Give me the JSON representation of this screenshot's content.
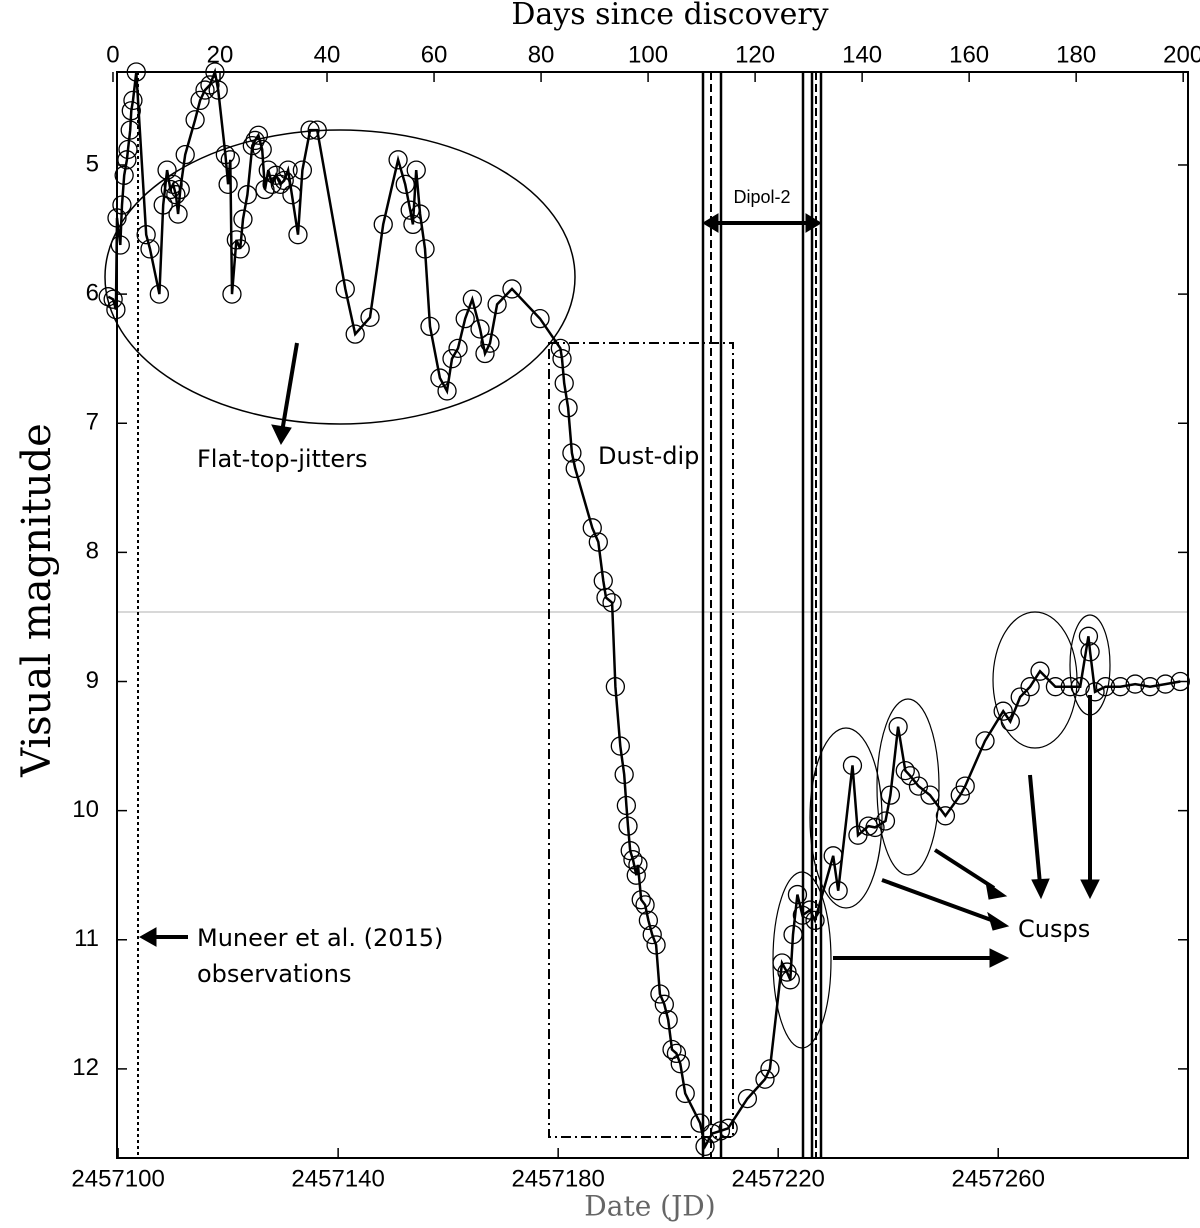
{
  "chart_data": {
    "type": "line",
    "y_label": "Visual magnitude",
    "x_label": "Date (JD)",
    "x2_label": "Days since discovery",
    "inverted_y": true,
    "xlim": [
      2457099.8,
      2457294.5
    ],
    "xticks": [
      2457100,
      2457140,
      2457180,
      2457220,
      2457260
    ],
    "x2lim": [
      0.75,
      200.9
    ],
    "x2ticks": [
      0,
      20,
      40,
      60,
      80,
      100,
      120,
      140,
      160,
      180,
      200
    ],
    "ylim": [
      4.28,
      12.69
    ],
    "yticks": [
      5,
      6,
      7,
      8,
      9,
      10,
      11,
      12
    ],
    "annotations": [
      "Flat-top-jitters",
      "Dust-dip",
      "Dipol-2",
      "Cusps",
      "Muneer et al. (2015)",
      "observations"
    ],
    "x": [
      2457098.2,
      2457099.1,
      2457099.6,
      2457099.8,
      2457100.4,
      2457100.7,
      2457101.1,
      2457101.6,
      2457101.8,
      2457102.2,
      2457102.4,
      2457102.7,
      2457103.3,
      2457105.1,
      2457105.8,
      2457107.5,
      2457108.2,
      2457108.9,
      2457109.5,
      2457110.0,
      2457110.5,
      2457110.9,
      2457111.3,
      2457112.2,
      2457114.0,
      2457114.9,
      2457115.8,
      2457116.7,
      2457117.6,
      2457118.2,
      2457119.5,
      2457120.0,
      2457120.4,
      2457120.7,
      2457121.5,
      2457122.2,
      2457122.7,
      2457123.5,
      2457124.4,
      2457124.9,
      2457125.5,
      2457126.2,
      2457126.7,
      2457127.3,
      2457128.0,
      2457128.7,
      2457129.5,
      2457130.2,
      2457130.9,
      2457131.6,
      2457132.7,
      2457133.5,
      2457134.9,
      2457136.2,
      2457141.3,
      2457143.1,
      2457145.8,
      2457148.2,
      2457150.9,
      2457152.2,
      2457153.1,
      2457153.6,
      2457154.2,
      2457154.9,
      2457155.8,
      2457156.7,
      2457158.5,
      2457159.8,
      2457160.7,
      2457161.8,
      2457163.1,
      2457164.4,
      2457165.8,
      2457166.7,
      2457167.6,
      2457168.9,
      2457171.6,
      2457176.7,
      2457180.4,
      2457180.7,
      2457181.1,
      2457181.8,
      2457182.5,
      2457183.1,
      2457186.2,
      2457187.3,
      2457188.2,
      2457188.7,
      2457189.8,
      2457190.4,
      2457191.3,
      2457192.0,
      2457192.4,
      2457192.7,
      2457193.1,
      2457193.6,
      2457194.2,
      2457194.5,
      2457195.1,
      2457195.8,
      2457196.4,
      2457197.1,
      2457197.8,
      2457198.5,
      2457199.3,
      2457200.0,
      2457200.7,
      2457201.5,
      2457202.2,
      2457203.1,
      2457205.8,
      2457206.7,
      2457208.0,
      2457209.5,
      2457210.9,
      2457214.4,
      2457217.6,
      2457218.5,
      2457220.7,
      2457221.6,
      2457222.2,
      2457222.7,
      2457223.5,
      2457224.4,
      2457225.8,
      2457226.7,
      2457230.0,
      2457230.9,
      2457233.5,
      2457234.5,
      2457236.4,
      2457237.6,
      2457239.5,
      2457240.4,
      2457241.8,
      2457243.1,
      2457244.0,
      2457245.5,
      2457247.6,
      2457250.4,
      2457253.1,
      2457254.0,
      2457257.6,
      2457260.9,
      2457262.2,
      2457264.0,
      2457265.8,
      2457267.6,
      2457270.4,
      2457273.1,
      2457274.9,
      2457276.4,
      2457276.7,
      2457277.6,
      2457279.5,
      2457282.2,
      2457284.9,
      2457287.6,
      2457290.4,
      2457293.1
    ],
    "series": [
      {
        "color": "#000000",
        "values": [
          6.02,
          6.04,
          6.12,
          5.41,
          5.62,
          5.31,
          5.08,
          4.96,
          4.88,
          4.73,
          4.58,
          4.5,
          4.28,
          5.54,
          5.65,
          6.0,
          5.31,
          5.04,
          5.19,
          5.15,
          5.23,
          5.38,
          5.19,
          4.92,
          4.65,
          4.5,
          4.42,
          4.38,
          4.28,
          4.42,
          4.92,
          5.15,
          4.96,
          6.0,
          5.58,
          5.65,
          5.42,
          5.23,
          4.85,
          4.81,
          4.77,
          4.88,
          5.19,
          5.04,
          5.15,
          5.08,
          5.15,
          5.12,
          5.04,
          5.23,
          5.54,
          5.04,
          4.73,
          4.73,
          5.96,
          6.31,
          6.18,
          5.46,
          4.96,
          5.15,
          5.35,
          5.46,
          5.04,
          5.38,
          5.65,
          6.25,
          6.65,
          6.75,
          6.5,
          6.42,
          6.19,
          6.04,
          6.27,
          6.46,
          6.38,
          6.08,
          5.96,
          6.19,
          6.42,
          6.5,
          6.69,
          6.88,
          7.23,
          7.35,
          7.81,
          7.92,
          8.22,
          8.35,
          8.39,
          9.04,
          9.5,
          9.72,
          9.96,
          10.12,
          10.31,
          10.38,
          10.5,
          10.42,
          10.69,
          10.73,
          10.85,
          10.96,
          11.04,
          11.42,
          11.5,
          11.62,
          11.85,
          11.88,
          11.96,
          12.19,
          12.42,
          12.6,
          12.5,
          12.48,
          12.46,
          12.23,
          12.08,
          12.0,
          11.18,
          11.25,
          11.31,
          10.96,
          10.65,
          10.81,
          10.77,
          10.85,
          10.35,
          10.62,
          9.65,
          10.19,
          10.12,
          10.13,
          10.08,
          9.88,
          9.35,
          9.69,
          9.73,
          9.81,
          9.88,
          10.04,
          9.88,
          9.81,
          9.46,
          9.23,
          9.31,
          9.12,
          9.04,
          8.92,
          9.04,
          9.04,
          9.04,
          8.65,
          8.77,
          9.08,
          9.04,
          9.04,
          9.02,
          9.04,
          9.02,
          9.0
        ]
      }
    ]
  }
}
